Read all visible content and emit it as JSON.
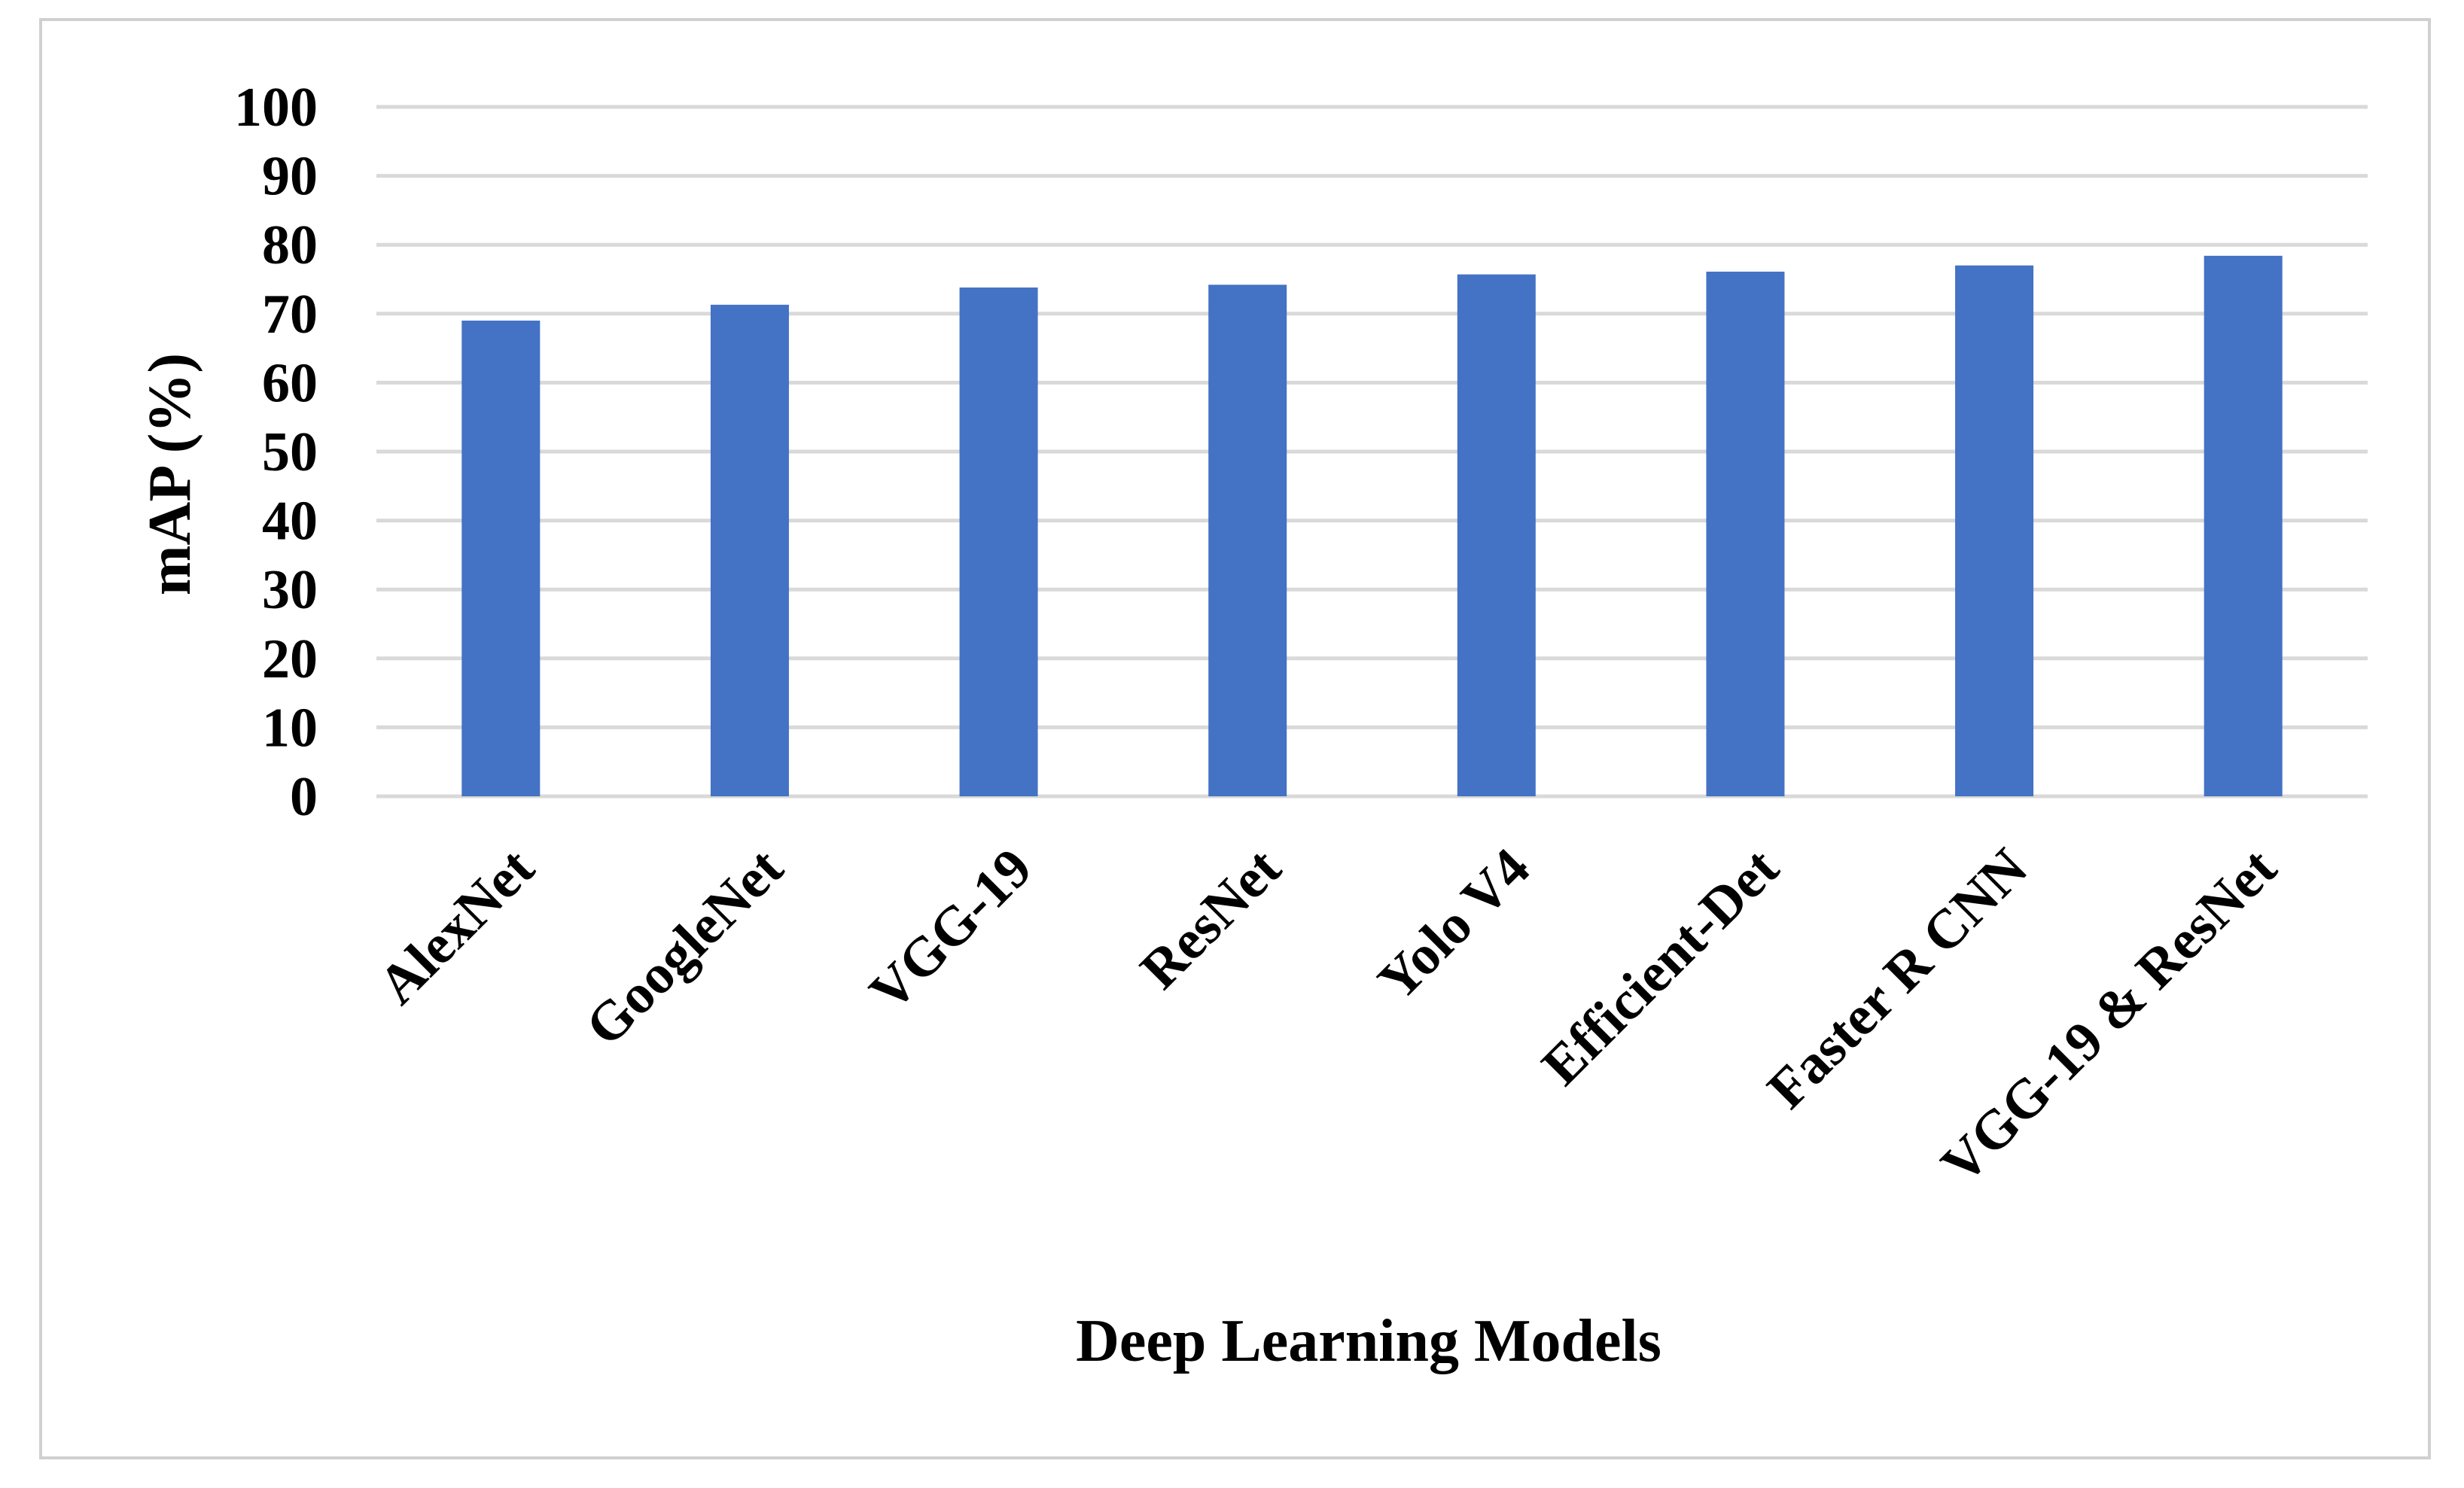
{
  "chart_data": {
    "type": "bar",
    "title": "",
    "xlabel": "Deep Learning Models",
    "ylabel": "mAP (%)",
    "categories": [
      "AlexNet",
      "GoogleNet",
      "VGG-19",
      "ResNet",
      "Yolo V4",
      "Efficient-Det",
      "Faster R CNN",
      "VGG-19 & ResNet"
    ],
    "values": [
      69.0,
      71.3,
      73.8,
      74.2,
      75.7,
      76.1,
      77.0,
      78.4
    ],
    "ylim": [
      0,
      100
    ],
    "yticks": [
      "0",
      "10",
      "20",
      "30",
      "40",
      "50",
      "60",
      "70",
      "80",
      "90",
      "100"
    ],
    "grid": true,
    "legend": "none",
    "bar_color": "#4472C4",
    "grid_color": "#d9d9d9"
  }
}
